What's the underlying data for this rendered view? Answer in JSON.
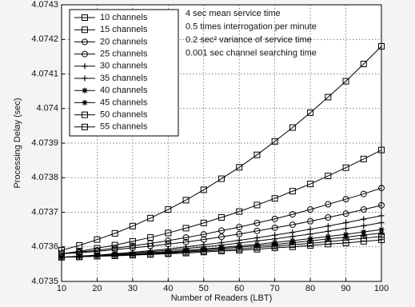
{
  "chart_data": {
    "type": "line",
    "xlabel": "Number of Readers (LBT)",
    "ylabel": "Processing Delay (sec)",
    "annotations": [
      "4 sec mean service time",
      "0.5 times interrogation per minute",
      "0.2 sec² variance of service time",
      "0.001 sec channel searching time"
    ],
    "x": [
      10,
      15,
      20,
      25,
      30,
      35,
      40,
      45,
      50,
      55,
      60,
      65,
      70,
      75,
      80,
      85,
      90,
      95,
      100
    ],
    "xlim": [
      10,
      100
    ],
    "xticks": [
      10,
      20,
      30,
      40,
      50,
      60,
      70,
      80,
      90,
      100
    ],
    "ylim": [
      4.0735,
      4.0743
    ],
    "yticks": [
      4.0735,
      4.0736,
      4.0737,
      4.0738,
      4.0739,
      4.074,
      4.0741,
      4.0742,
      4.0743
    ],
    "grid": true,
    "legend": "upper left",
    "series": [
      {
        "name": "10 channels",
        "color": "#000000",
        "marker": "square",
        "values": [
          4.07359,
          4.073604,
          4.073621,
          4.073639,
          4.07366,
          4.073683,
          4.073708,
          4.073735,
          4.073765,
          4.073797,
          4.07383,
          4.073866,
          4.073905,
          4.073945,
          4.073988,
          4.074033,
          4.074079,
          4.074129,
          4.07418
        ]
      },
      {
        "name": "15 channels",
        "color": "#000000",
        "marker": "square",
        "values": [
          4.07358,
          4.073587,
          4.073596,
          4.073605,
          4.073616,
          4.073627,
          4.07364,
          4.073654,
          4.073669,
          4.073685,
          4.073702,
          4.073721,
          4.07374,
          4.073761,
          4.073782,
          4.073805,
          4.073829,
          4.073854,
          4.07388
        ]
      },
      {
        "name": "20 channels",
        "color": "#000000",
        "marker": "circle",
        "values": [
          4.07358,
          4.073585,
          4.07359,
          4.073596,
          4.073603,
          4.07361,
          4.073618,
          4.073627,
          4.073636,
          4.073647,
          4.073657,
          4.073669,
          4.073681,
          4.073694,
          4.073708,
          4.073723,
          4.073738,
          4.073753,
          4.07377
        ]
      },
      {
        "name": "25 channels",
        "color": "#000000",
        "marker": "circle",
        "values": [
          4.07358,
          4.073583,
          4.073587,
          4.073592,
          4.073597,
          4.073602,
          4.073608,
          4.073614,
          4.073621,
          4.073629,
          4.073637,
          4.073646,
          4.073655,
          4.073664,
          4.073674,
          4.073685,
          4.073696,
          4.073708,
          4.07372
        ]
      },
      {
        "name": "30 channels",
        "color": "#000000",
        "marker": "plus",
        "values": [
          4.07357,
          4.073573,
          4.073576,
          4.07358,
          4.073584,
          4.073589,
          4.073594,
          4.0736,
          4.073606,
          4.073612,
          4.073619,
          4.073626,
          4.073634,
          4.073642,
          4.073651,
          4.07366,
          4.07367,
          4.07368,
          4.07369
        ]
      },
      {
        "name": "35 channels",
        "color": "#000000",
        "marker": "plus",
        "values": [
          4.07357,
          4.073572,
          4.073575,
          4.073578,
          4.073582,
          4.073586,
          4.07359,
          4.073595,
          4.0736,
          4.073605,
          4.073611,
          4.073617,
          4.073623,
          4.07363,
          4.073637,
          4.073645,
          4.073653,
          4.073661,
          4.07367
        ]
      },
      {
        "name": "40 channels",
        "color": "#000000",
        "marker": "star",
        "values": [
          4.07357,
          4.073572,
          4.073574,
          4.073577,
          4.073579,
          4.073583,
          4.073586,
          4.07359,
          4.073594,
          4.073598,
          4.073603,
          4.073607,
          4.073613,
          4.073618,
          4.073624,
          4.07363,
          4.073636,
          4.073643,
          4.07365
        ]
      },
      {
        "name": "45 channels",
        "color": "#000000",
        "marker": "star",
        "values": [
          4.07357,
          4.073572,
          4.073574,
          4.073576,
          4.073578,
          4.073581,
          4.073584,
          4.073587,
          4.073591,
          4.073595,
          4.073599,
          4.073603,
          4.073607,
          4.073612,
          4.073617,
          4.073623,
          4.073628,
          4.073634,
          4.07364
        ]
      },
      {
        "name": "50 channels",
        "color": "#000000",
        "marker": "square",
        "values": [
          4.07357,
          4.073571,
          4.073573,
          4.073575,
          4.073577,
          4.073579,
          4.073582,
          4.073585,
          4.073588,
          4.073591,
          4.073594,
          4.073598,
          4.073602,
          4.073606,
          4.07361,
          4.073615,
          4.07362,
          4.073625,
          4.07363
        ]
      },
      {
        "name": "55 channels",
        "color": "#000000",
        "marker": "square",
        "values": [
          4.07357,
          4.073571,
          4.073573,
          4.073574,
          4.073576,
          4.073578,
          4.07358,
          4.073582,
          4.073585,
          4.073588,
          4.07359,
          4.073593,
          4.073597,
          4.0736,
          4.073604,
          4.073608,
          4.073611,
          4.073616,
          4.07362
        ]
      }
    ]
  }
}
